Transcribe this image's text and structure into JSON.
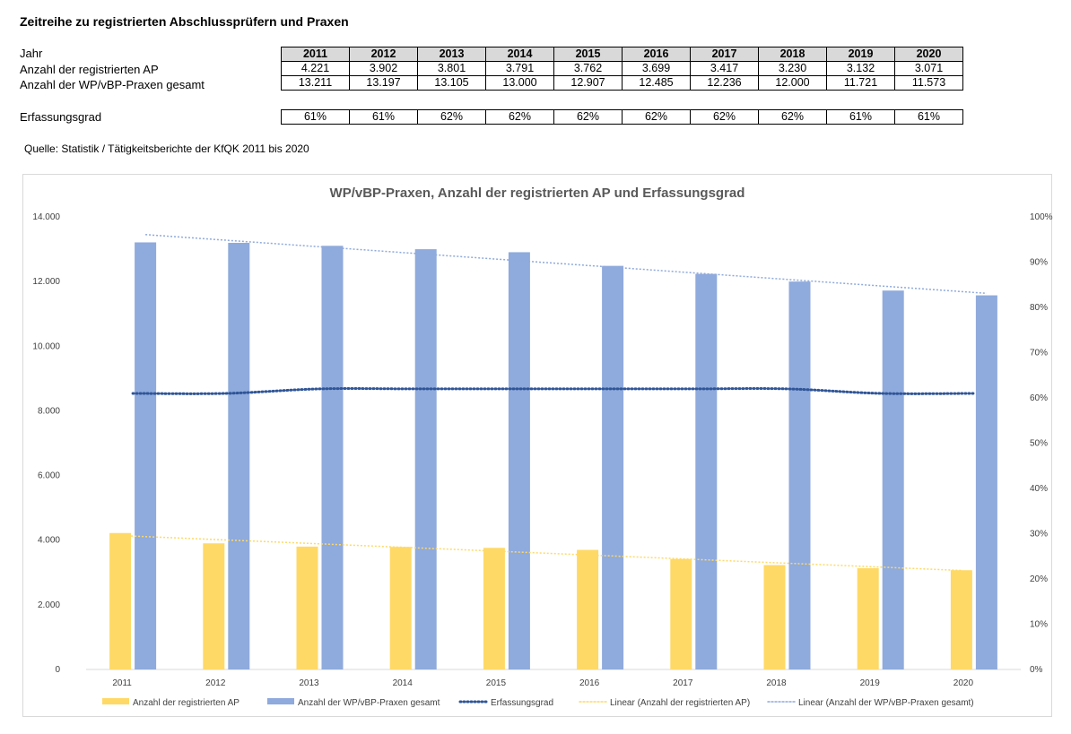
{
  "page": {
    "title": "Zeitreihe zu registrierten Abschlussprüfern und Praxen",
    "source": "Quelle: Statistik / Tätigkeitsberichte der KfQK 2011 bis 2020"
  },
  "table": {
    "row_labels": {
      "year": "Jahr",
      "ap": "Anzahl der registrierten AP",
      "praxen": "Anzahl der WP/vBP-Praxen gesamt",
      "grad": "Erfassungsgrad"
    },
    "years": [
      "2011",
      "2012",
      "2013",
      "2014",
      "2015",
      "2016",
      "2017",
      "2018",
      "2019",
      "2020"
    ],
    "ap": [
      "4.221",
      "3.902",
      "3.801",
      "3.791",
      "3.762",
      "3.699",
      "3.417",
      "3.230",
      "3.132",
      "3.071"
    ],
    "praxen": [
      "13.211",
      "13.197",
      "13.105",
      "13.000",
      "12.907",
      "12.485",
      "12.236",
      "12.000",
      "11.721",
      "11.573"
    ],
    "grad": [
      "61%",
      "61%",
      "62%",
      "62%",
      "62%",
      "62%",
      "62%",
      "62%",
      "61%",
      "61%"
    ]
  },
  "chart_data": {
    "type": "bar",
    "title": "WP/vBP-Praxen, Anzahl der registrierten AP und Erfassungsgrad",
    "categories": [
      "2011",
      "2012",
      "2013",
      "2014",
      "2015",
      "2016",
      "2017",
      "2018",
      "2019",
      "2020"
    ],
    "series": [
      {
        "name": "Anzahl der registrierten AP",
        "type": "bar",
        "axis": "left",
        "color": "#ffd966",
        "values": [
          4221,
          3902,
          3801,
          3791,
          3762,
          3699,
          3417,
          3230,
          3132,
          3071
        ]
      },
      {
        "name": "Anzahl der WP/vBP-Praxen gesamt",
        "type": "bar",
        "axis": "left",
        "color": "#8faadc",
        "values": [
          13211,
          13197,
          13105,
          13000,
          12907,
          12485,
          12236,
          12000,
          11721,
          11573
        ]
      },
      {
        "name": "Erfassungsgrad",
        "type": "line",
        "style": "dotted",
        "axis": "right",
        "color": "#2f5597",
        "values": [
          0.61,
          0.61,
          0.62,
          0.62,
          0.62,
          0.62,
          0.62,
          0.62,
          0.61,
          0.61
        ]
      },
      {
        "name": "Linear (Anzahl der registrierten AP)",
        "type": "trendline",
        "style": "dotted",
        "axis": "left",
        "color": "#ffd966",
        "from_series": 0
      },
      {
        "name": "Linear (Anzahl der WP/vBP-Praxen gesamt)",
        "type": "trendline",
        "style": "dotted",
        "axis": "left",
        "color": "#8faadc",
        "from_series": 1
      }
    ],
    "y_left": {
      "ylim": [
        0,
        14000
      ],
      "ticks": [
        "0",
        "2.000",
        "4.000",
        "6.000",
        "8.000",
        "10.000",
        "12.000",
        "14.000"
      ]
    },
    "y_right": {
      "ylim": [
        0,
        1
      ],
      "ticks": [
        "0%",
        "10%",
        "20%",
        "30%",
        "40%",
        "50%",
        "60%",
        "70%",
        "80%",
        "90%",
        "100%"
      ]
    },
    "grid": false,
    "legend": "bottom"
  }
}
